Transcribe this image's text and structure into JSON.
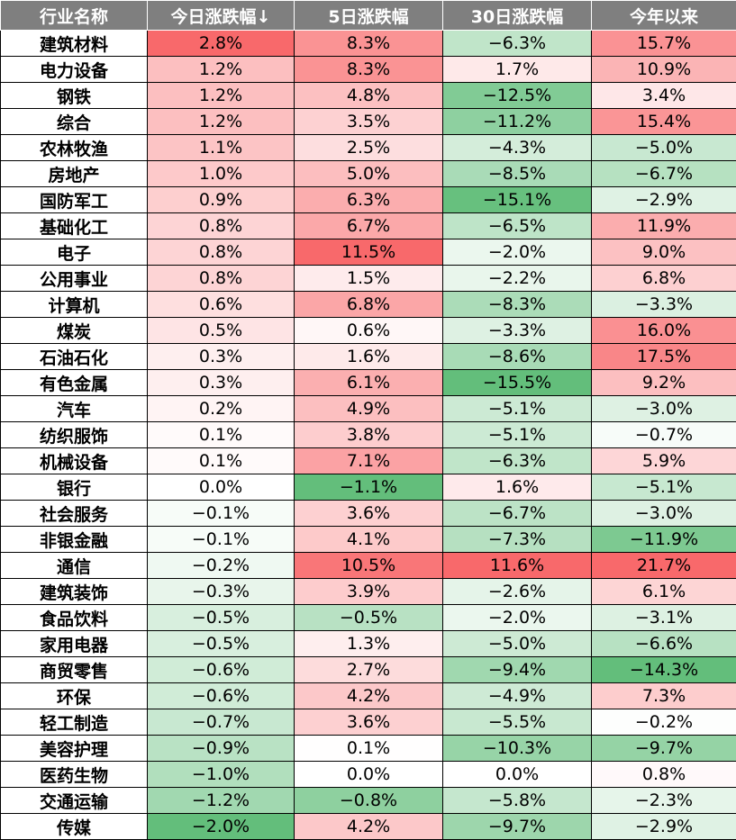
{
  "chart_data": {
    "type": "table",
    "columns": [
      "行业名称",
      "今日涨跌幅↓",
      "5日涨跌幅",
      "30日涨跌幅",
      "今年以来"
    ],
    "rows": [
      {
        "name": "建筑材料",
        "values": [
          "2.8%",
          "8.3%",
          "−6.3%",
          "15.7%"
        ]
      },
      {
        "name": "电力设备",
        "values": [
          "1.2%",
          "8.3%",
          "1.7%",
          "10.9%"
        ]
      },
      {
        "name": "钢铁",
        "values": [
          "1.2%",
          "4.8%",
          "−12.5%",
          "3.4%"
        ]
      },
      {
        "name": "综合",
        "values": [
          "1.2%",
          "3.5%",
          "−11.2%",
          "15.4%"
        ]
      },
      {
        "name": "农林牧渔",
        "values": [
          "1.1%",
          "2.5%",
          "−4.3%",
          "−5.0%"
        ]
      },
      {
        "name": "房地产",
        "values": [
          "1.0%",
          "5.0%",
          "−8.5%",
          "−6.7%"
        ]
      },
      {
        "name": "国防军工",
        "values": [
          "0.9%",
          "6.3%",
          "−15.1%",
          "−2.9%"
        ]
      },
      {
        "name": "基础化工",
        "values": [
          "0.8%",
          "6.7%",
          "−6.5%",
          "11.9%"
        ]
      },
      {
        "name": "电子",
        "values": [
          "0.8%",
          "11.5%",
          "−2.0%",
          "9.0%"
        ]
      },
      {
        "name": "公用事业",
        "values": [
          "0.8%",
          "1.5%",
          "−2.2%",
          "6.8%"
        ]
      },
      {
        "name": "计算机",
        "values": [
          "0.6%",
          "6.8%",
          "−8.3%",
          "−3.3%"
        ]
      },
      {
        "name": "煤炭",
        "values": [
          "0.5%",
          "0.6%",
          "−3.3%",
          "16.0%"
        ]
      },
      {
        "name": "石油石化",
        "values": [
          "0.3%",
          "1.6%",
          "−8.6%",
          "17.5%"
        ]
      },
      {
        "name": "有色金属",
        "values": [
          "0.3%",
          "6.1%",
          "−15.5%",
          "9.2%"
        ]
      },
      {
        "name": "汽车",
        "values": [
          "0.2%",
          "4.9%",
          "−5.1%",
          "−3.0%"
        ]
      },
      {
        "name": "纺织服饰",
        "values": [
          "0.1%",
          "3.8%",
          "−5.1%",
          "−0.7%"
        ]
      },
      {
        "name": "机械设备",
        "values": [
          "0.1%",
          "7.1%",
          "−6.3%",
          "5.9%"
        ]
      },
      {
        "name": "银行",
        "values": [
          "0.0%",
          "−1.1%",
          "1.6%",
          "−5.1%"
        ]
      },
      {
        "name": "社会服务",
        "values": [
          "−0.1%",
          "3.6%",
          "−6.7%",
          "−3.0%"
        ]
      },
      {
        "name": "非银金融",
        "values": [
          "−0.1%",
          "4.1%",
          "−7.3%",
          "−11.9%"
        ]
      },
      {
        "name": "通信",
        "values": [
          "−0.2%",
          "10.5%",
          "11.6%",
          "21.7%"
        ]
      },
      {
        "name": "建筑装饰",
        "values": [
          "−0.3%",
          "3.9%",
          "−2.6%",
          "6.1%"
        ]
      },
      {
        "name": "食品饮料",
        "values": [
          "−0.5%",
          "−0.5%",
          "−2.0%",
          "−3.1%"
        ]
      },
      {
        "name": "家用电器",
        "values": [
          "−0.5%",
          "1.3%",
          "−5.0%",
          "−6.6%"
        ]
      },
      {
        "name": "商贸零售",
        "values": [
          "−0.6%",
          "2.7%",
          "−9.4%",
          "−14.3%"
        ]
      },
      {
        "name": "环保",
        "values": [
          "−0.6%",
          "4.2%",
          "−4.9%",
          "7.3%"
        ]
      },
      {
        "name": "轻工制造",
        "values": [
          "−0.7%",
          "3.6%",
          "−5.5%",
          "−0.2%"
        ]
      },
      {
        "name": "美容护理",
        "values": [
          "−0.9%",
          "0.1%",
          "−10.3%",
          "−9.7%"
        ]
      },
      {
        "name": "医药生物",
        "values": [
          "−1.0%",
          "0.0%",
          "0.0%",
          "0.8%"
        ]
      },
      {
        "name": "交通运输",
        "values": [
          "−1.2%",
          "−0.8%",
          "−5.8%",
          "−2.3%"
        ]
      },
      {
        "name": "传媒",
        "values": [
          "−2.0%",
          "4.2%",
          "−9.7%",
          "−2.9%"
        ]
      }
    ],
    "colors": {
      "header_bg": "#7f7f7f",
      "header_text": "#ffffff",
      "positive_max": "#f8696b",
      "negative_max": "#63be7b",
      "neutral": "#ffffff"
    }
  }
}
